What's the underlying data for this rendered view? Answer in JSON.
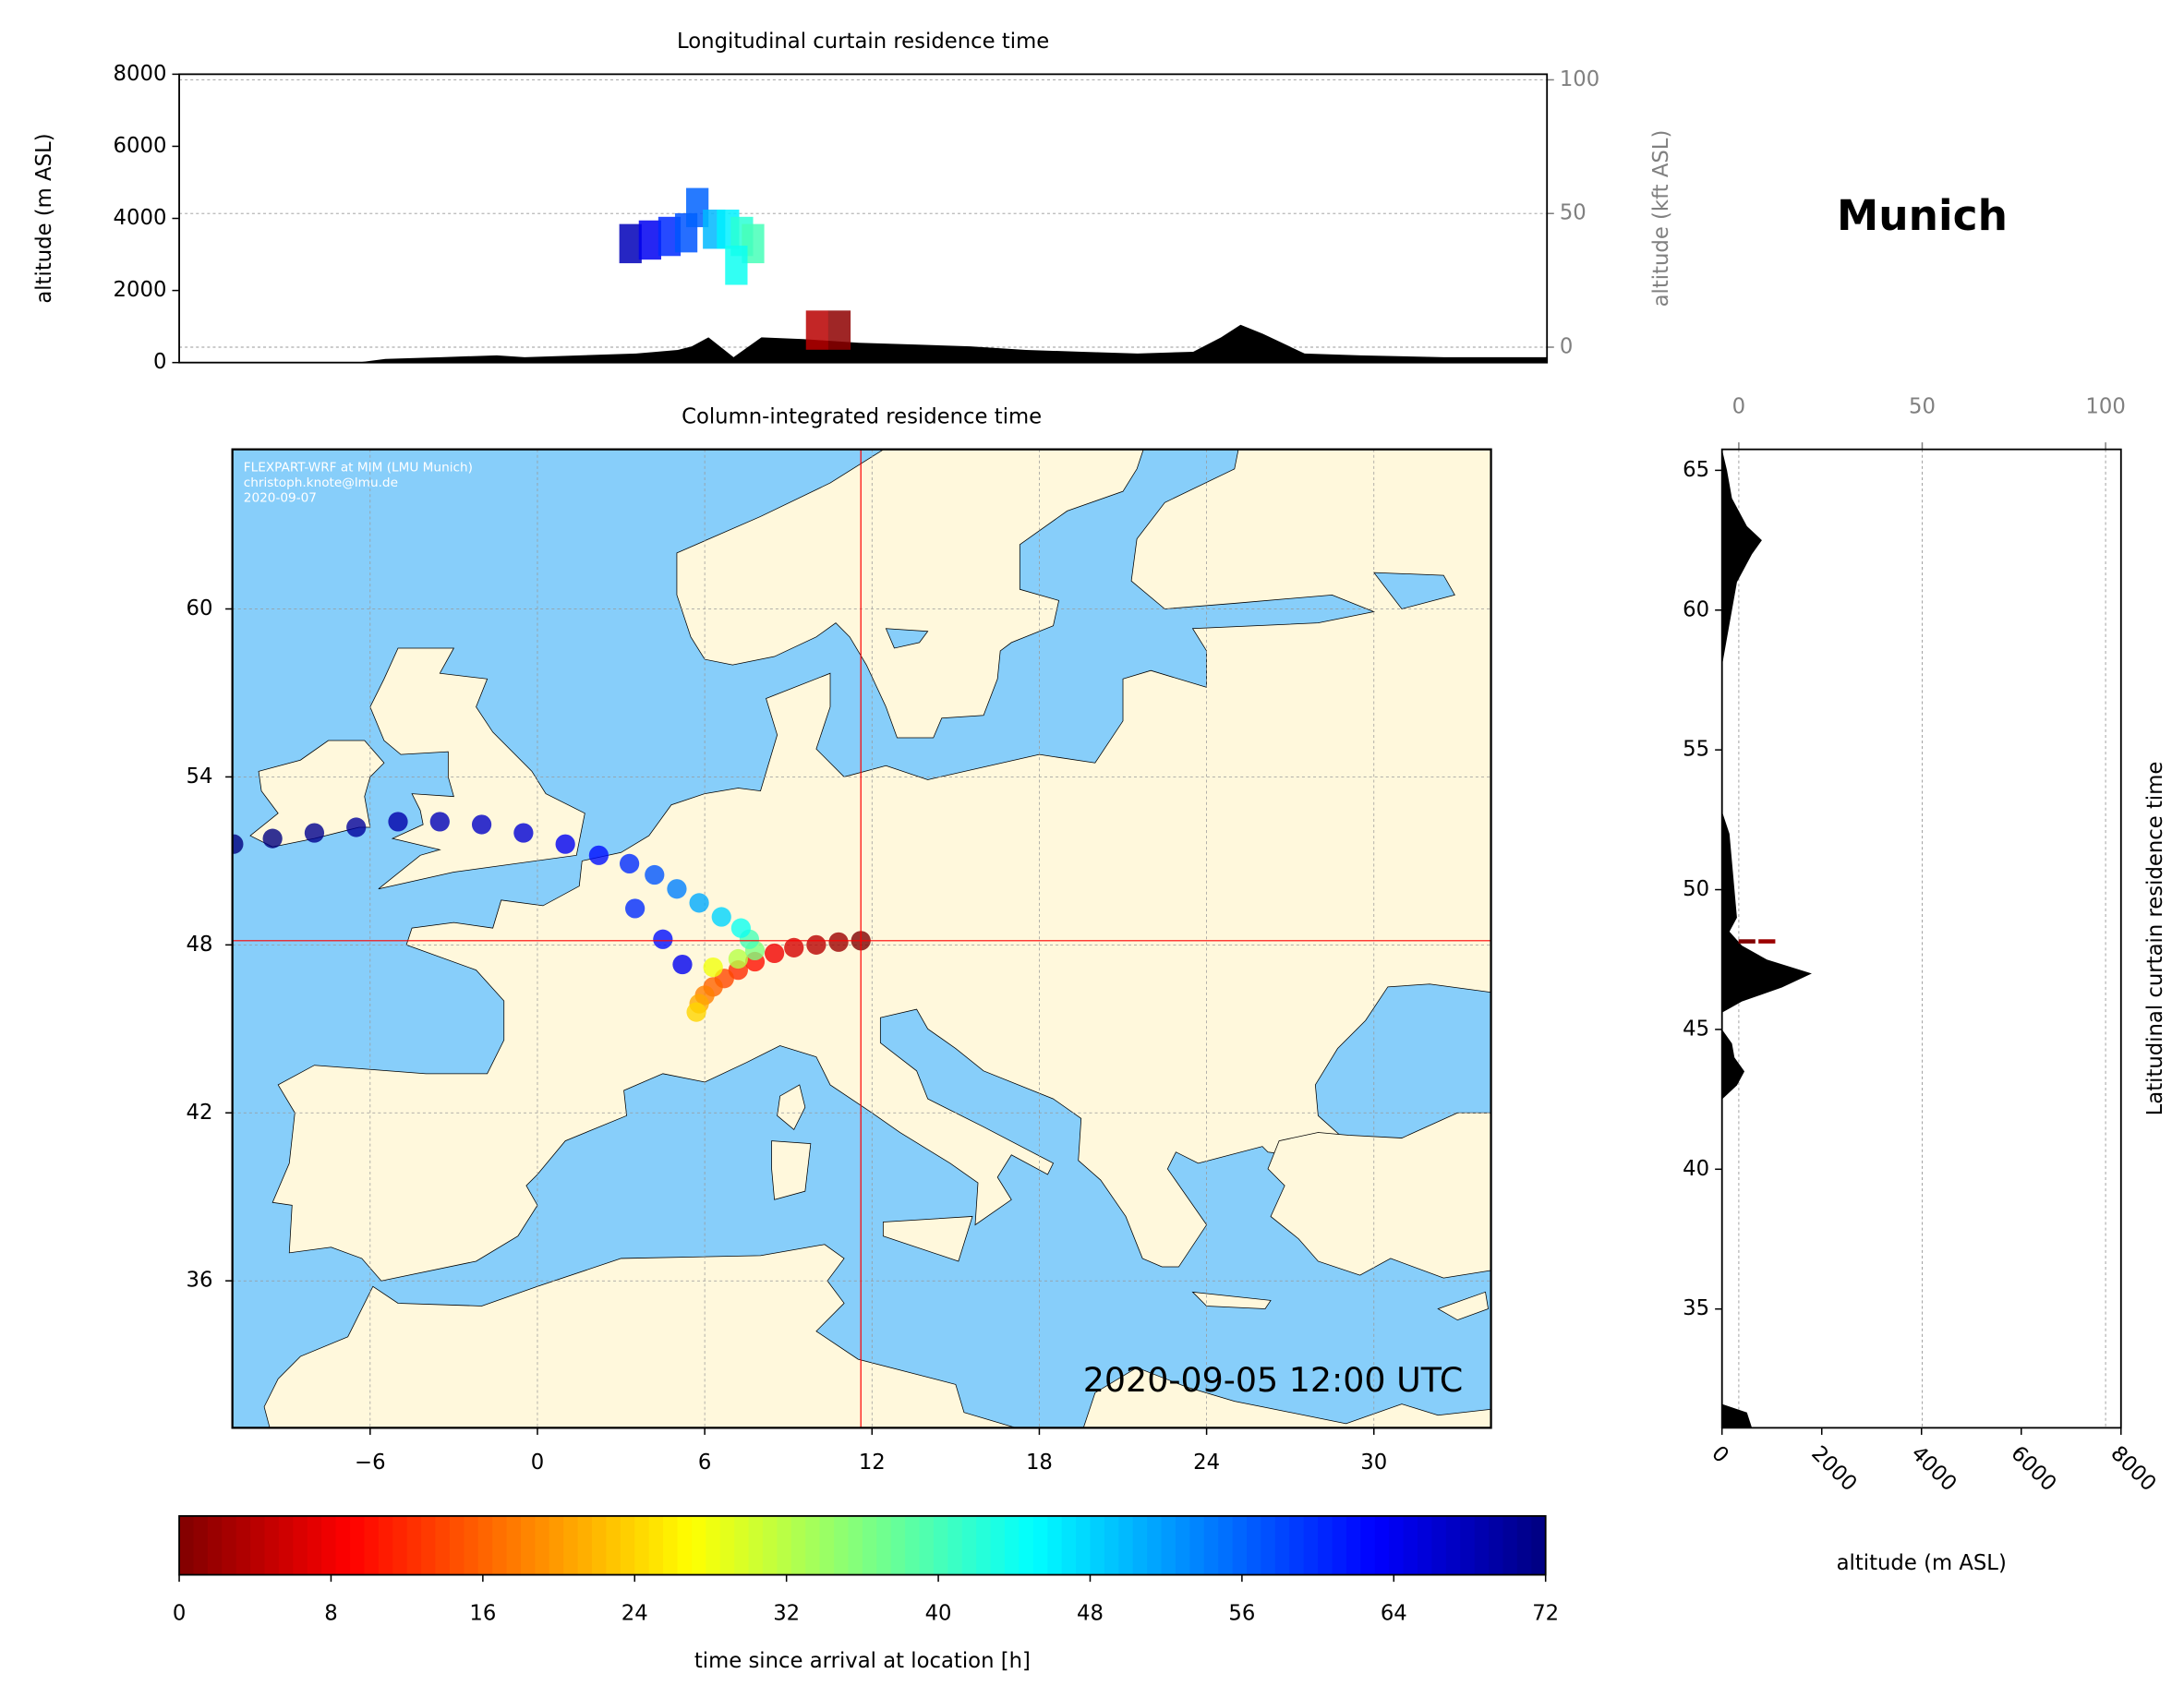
{
  "title": "Munich",
  "chart_data": [
    {
      "type": "curtain",
      "title": "Longitudinal curtain residence time",
      "y_label": "altitude (m ASL)",
      "y2_label": "altitude (kft ASL)",
      "xlim": [
        -12.4,
        36.7
      ],
      "ylim": [
        0,
        8000
      ],
      "yticks": [
        0,
        2000,
        4000,
        6000,
        8000
      ],
      "y2lim": [
        -5.76,
        102.1
      ],
      "y2ticks": [
        0,
        50,
        100
      ],
      "grid": true,
      "terrain": {
        "color": "#000000",
        "x": [
          -12.4,
          -6,
          -5,
          -3,
          -1,
          0,
          2,
          4,
          5.5,
          6,
          6.6,
          7.5,
          8.5,
          10,
          12,
          14,
          16,
          18,
          20,
          22,
          24,
          25,
          25.7,
          26.5,
          28,
          30,
          33,
          36.7
        ],
        "values": [
          0,
          0,
          100,
          150,
          200,
          150,
          200,
          250,
          350,
          450,
          700,
          150,
          700,
          650,
          550,
          500,
          450,
          350,
          300,
          250,
          300,
          700,
          1050,
          800,
          250,
          200,
          150,
          150
        ]
      },
      "plume": {
        "x": [
          3.8,
          4.5,
          5.2,
          5.8,
          6.2,
          6.8,
          7.3,
          7.8,
          8.2,
          7.6,
          10.5,
          11.3
        ],
        "values": [
          3300,
          3400,
          3500,
          3600,
          4300,
          3700,
          3700,
          3500,
          3300,
          2700,
          900,
          900
        ],
        "hours": [
          68,
          64,
          60,
          57,
          56,
          50,
          46,
          42,
          40,
          44,
          4,
          1
        ]
      }
    },
    {
      "type": "map",
      "title": "Column-integrated residence time",
      "xlim": [
        -10.94,
        34.2
      ],
      "ylim": [
        30.75,
        65.7
      ],
      "xticks": [
        {
          "value": -6,
          "label": "−6"
        },
        0,
        6,
        12,
        18,
        24,
        30
      ],
      "yticks": [
        36,
        42,
        48,
        54,
        60
      ],
      "grid": true,
      "ocean_color": "#87cefa",
      "land_color": "#fff8dc",
      "site": {
        "lon": 11.6,
        "lat": 48.15,
        "color": "#ff0000"
      },
      "annotations": [
        "FLEXPART-WRF at MIM (LMU Munich)",
        "christoph.knote@lmu.de",
        "2020-09-07"
      ],
      "timestamp": "2020-09-05 12:00 UTC",
      "plume": {
        "x": [
          11.6,
          10.8,
          10,
          9.2,
          8.5,
          7.8,
          7.2,
          6.7,
          6.3,
          6,
          5.8,
          5.7,
          6.3,
          7.2,
          7.8,
          7.6,
          7.3,
          6.6,
          5.8,
          5,
          4.2,
          3.3,
          2.2,
          5.2,
          4.5,
          3.5,
          1,
          -0.5,
          -2,
          -3.5,
          -5,
          -6.5,
          -8,
          -9.5,
          -10.9
        ],
        "y": [
          48.15,
          48.1,
          48.0,
          47.9,
          47.7,
          47.4,
          47.1,
          46.8,
          46.5,
          46.2,
          45.9,
          45.6,
          47.2,
          47.5,
          47.8,
          48.2,
          48.6,
          49.0,
          49.5,
          50,
          50.5,
          50.9,
          51.2,
          47.3,
          48.2,
          49.3,
          51.6,
          52,
          52.3,
          52.4,
          52.4,
          52.2,
          52.0,
          51.8,
          51.6
        ],
        "hours": [
          0,
          2,
          4,
          6,
          8,
          10,
          12,
          14,
          16,
          18,
          21,
          24,
          28,
          32,
          36,
          40,
          44,
          48,
          51,
          54,
          57,
          60,
          62,
          64,
          62,
          60,
          64,
          66,
          67,
          68,
          69,
          70,
          71,
          72,
          72
        ]
      }
    },
    {
      "type": "colorbar",
      "label": "time since arrival at location [h]",
      "colormap": "jet_r",
      "lim": [
        0,
        72
      ],
      "ticks": [
        0,
        8,
        16,
        24,
        32,
        40,
        48,
        56,
        64,
        72
      ]
    },
    {
      "type": "profile",
      "x_label": "altitude (m ASL)",
      "y_label": "Latitudinal curtain residence time",
      "xlim": [
        0,
        8000
      ],
      "xticks": [
        0,
        2000,
        4000,
        6000,
        8000
      ],
      "x2lim": [
        -4.58,
        104.2
      ],
      "x2ticks": [
        0,
        50,
        100
      ],
      "grid": true,
      "ylim": [
        30.75,
        65.75
      ],
      "yticks": [
        35,
        40,
        45,
        50,
        55,
        60,
        65
      ],
      "terrain": {
        "color": "#000000",
        "y": [
          30.75,
          31.3,
          31.6,
          42.5,
          43,
          43.5,
          44,
          44.5,
          45,
          45.6,
          46,
          46.5,
          47,
          47.5,
          48,
          48.5,
          49,
          50,
          51,
          52,
          52.8,
          58,
          59,
          60,
          61,
          62,
          62.5,
          63,
          64,
          65,
          65.75
        ],
        "values": [
          600,
          500,
          0,
          0,
          300,
          450,
          250,
          200,
          0,
          0,
          400,
          1200,
          1800,
          900,
          400,
          150,
          300,
          250,
          200,
          150,
          0,
          0,
          100,
          200,
          300,
          600,
          800,
          500,
          200,
          100,
          0
        ]
      },
      "plume": {
        "y": [
          48.15,
          48.15
        ],
        "values": [
          500,
          900
        ],
        "hours": [
          0,
          2
        ]
      }
    }
  ]
}
